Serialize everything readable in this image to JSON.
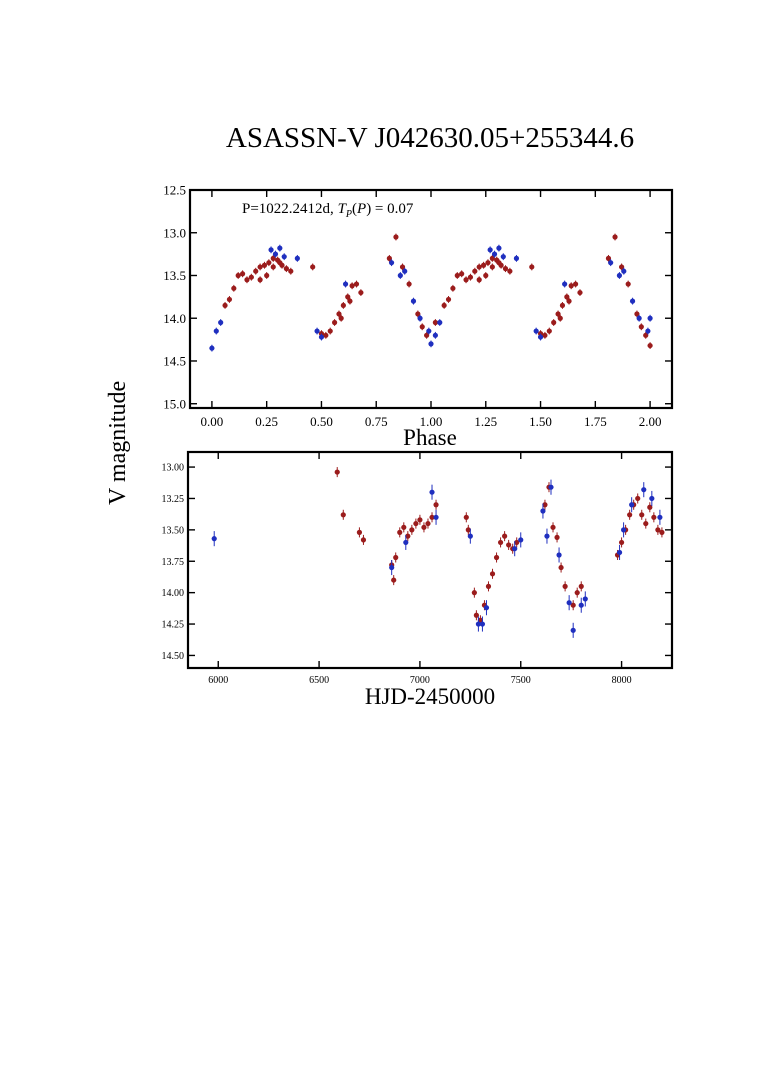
{
  "chart_data": [
    {
      "type": "scatter",
      "title": "ASASSN-V J042630.05+255344.6",
      "annotation_period": "P=1022.2412d,",
      "annotation_tp": "0.07",
      "xlabel": "Phase",
      "ylabel": "V magnitude",
      "xlim": [
        -0.1,
        2.1
      ],
      "ylim": [
        15.05,
        12.5
      ],
      "y_inverted": true,
      "xticks": [
        "0.00",
        "0.25",
        "0.50",
        "0.75",
        "1.00",
        "1.25",
        "1.50",
        "1.75",
        "2.00"
      ],
      "yticks": [
        "12.5",
        "13.0",
        "13.5",
        "14.0",
        "14.5",
        "15.0"
      ],
      "series": [
        {
          "color": "#9b1c1c",
          "x": [
            0.06,
            0.08,
            0.1,
            0.12,
            0.14,
            0.16,
            0.18,
            0.2,
            0.22,
            0.24,
            0.26,
            0.28,
            0.3,
            0.32,
            0.34,
            0.36,
            0.22,
            0.25,
            0.28,
            0.31,
            0.46,
            0.5,
            0.52,
            0.54,
            0.56,
            0.58,
            0.6,
            0.62,
            0.64,
            0.66,
            0.68,
            0.59,
            0.63,
            0.81,
            0.84,
            0.87,
            0.9,
            0.94,
            0.96,
            0.98,
            1.02,
            1.06,
            1.08,
            1.1,
            1.12,
            1.14,
            1.16,
            1.18,
            1.2,
            1.22,
            1.24,
            1.26,
            1.28,
            1.3,
            1.32,
            1.34,
            1.36,
            1.22,
            1.25,
            1.28,
            1.31,
            1.46,
            1.5,
            1.52,
            1.54,
            1.56,
            1.58,
            1.6,
            1.62,
            1.64,
            1.66,
            1.68,
            1.59,
            1.63,
            1.81,
            1.84,
            1.87,
            1.9,
            1.94,
            1.96,
            1.98,
            2.0
          ],
          "y": [
            13.85,
            13.78,
            13.65,
            13.5,
            13.48,
            13.55,
            13.52,
            13.45,
            13.4,
            13.38,
            13.35,
            13.3,
            13.32,
            13.38,
            13.42,
            13.45,
            13.55,
            13.5,
            13.4,
            13.35,
            13.4,
            14.18,
            14.2,
            14.15,
            14.05,
            13.95,
            13.85,
            13.75,
            13.62,
            13.6,
            13.7,
            14.0,
            13.8,
            13.3,
            13.05,
            13.4,
            13.6,
            13.95,
            14.1,
            14.2,
            14.05,
            13.85,
            13.78,
            13.65,
            13.5,
            13.48,
            13.55,
            13.52,
            13.45,
            13.4,
            13.38,
            13.35,
            13.3,
            13.32,
            13.38,
            13.42,
            13.45,
            13.55,
            13.5,
            13.4,
            13.35,
            13.4,
            14.18,
            14.2,
            14.15,
            14.05,
            13.95,
            13.85,
            13.75,
            13.62,
            13.6,
            13.7,
            14.0,
            13.8,
            13.3,
            13.05,
            13.4,
            13.6,
            13.95,
            14.1,
            14.2,
            14.32
          ]
        },
        {
          "color": "#1f2fbf",
          "x": [
            0.0,
            0.02,
            0.04,
            0.27,
            0.29,
            0.31,
            0.33,
            0.39,
            0.48,
            0.5,
            0.61,
            0.82,
            0.86,
            0.88,
            0.92,
            0.95,
            0.99,
            1.0,
            1.02,
            1.04,
            1.27,
            1.29,
            1.31,
            1.33,
            1.39,
            1.48,
            1.5,
            1.61,
            1.82,
            1.86,
            1.88,
            1.92,
            1.95,
            1.99,
            2.0
          ],
          "y": [
            14.35,
            14.15,
            14.05,
            13.2,
            13.25,
            13.18,
            13.28,
            13.3,
            14.15,
            14.22,
            13.6,
            13.35,
            13.5,
            13.45,
            13.8,
            14.0,
            14.15,
            14.3,
            14.2,
            14.05,
            13.2,
            13.25,
            13.18,
            13.28,
            13.3,
            14.15,
            14.22,
            13.6,
            13.35,
            13.5,
            13.45,
            13.8,
            14.0,
            14.15,
            14.0
          ]
        }
      ]
    },
    {
      "type": "scatter",
      "xlabel": "HJD-2450000",
      "xlim": [
        5850,
        8250
      ],
      "ylim": [
        14.6,
        12.88
      ],
      "y_inverted": true,
      "xticks": [
        "6000",
        "6500",
        "7000",
        "7500",
        "8000"
      ],
      "yticks": [
        "13.00",
        "13.25",
        "13.50",
        "13.75",
        "14.00",
        "14.25",
        "14.50"
      ],
      "series": [
        {
          "color": "#9b1c1c",
          "x": [
            6590,
            6620,
            6700,
            6720,
            6860,
            6870,
            6880,
            6900,
            6920,
            6940,
            6960,
            6980,
            7000,
            7020,
            7040,
            7060,
            7080,
            7230,
            7240,
            7270,
            7280,
            7300,
            7320,
            7340,
            7360,
            7380,
            7400,
            7420,
            7440,
            7460,
            7480,
            7620,
            7640,
            7660,
            7680,
            7700,
            7720,
            7760,
            7780,
            7800,
            7980,
            8000,
            8020,
            8040,
            8060,
            8080,
            8100,
            8120,
            8140,
            8160,
            8180,
            8200
          ],
          "y": [
            13.04,
            13.38,
            13.52,
            13.58,
            13.78,
            13.9,
            13.72,
            13.52,
            13.48,
            13.55,
            13.5,
            13.45,
            13.42,
            13.48,
            13.45,
            13.4,
            13.3,
            13.4,
            13.5,
            14.0,
            14.18,
            14.22,
            14.1,
            13.95,
            13.85,
            13.72,
            13.6,
            13.55,
            13.62,
            13.65,
            13.6,
            13.3,
            13.16,
            13.48,
            13.56,
            13.8,
            13.95,
            14.1,
            14.0,
            13.95,
            13.7,
            13.6,
            13.5,
            13.38,
            13.3,
            13.25,
            13.38,
            13.45,
            13.32,
            13.4,
            13.5,
            13.52
          ],
          "err": 0.04
        },
        {
          "color": "#1f2fbf",
          "x": [
            5980,
            6860,
            6930,
            7060,
            7080,
            7250,
            7290,
            7310,
            7330,
            7470,
            7500,
            7610,
            7630,
            7650,
            7690,
            7740,
            7760,
            7800,
            7820,
            7990,
            8010,
            8050,
            8110,
            8150,
            8190
          ],
          "y": [
            13.57,
            13.8,
            13.6,
            13.2,
            13.4,
            13.55,
            14.25,
            14.25,
            14.12,
            13.65,
            13.58,
            13.35,
            13.55,
            13.16,
            13.7,
            14.08,
            14.3,
            14.1,
            14.05,
            13.68,
            13.5,
            13.3,
            13.18,
            13.25,
            13.4
          ],
          "err": 0.06
        }
      ]
    }
  ]
}
